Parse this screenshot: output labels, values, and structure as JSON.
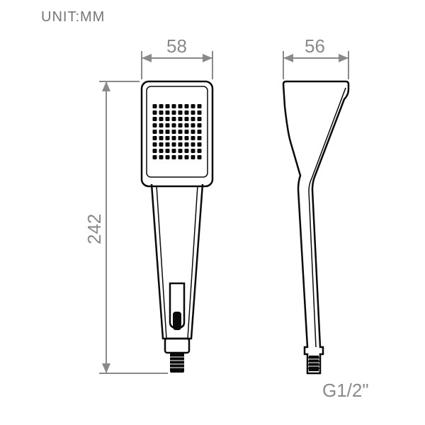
{
  "unit_label": "UNIT:MM",
  "front": {
    "width_label": "58",
    "width_mm": 58,
    "head_height_mm": 108,
    "nozzle_grid": {
      "cols": 8,
      "rows": 9,
      "hole_size": 6,
      "gap": 3
    }
  },
  "height_label": "242",
  "total_height_mm": 242,
  "side": {
    "depth_label": "56",
    "depth_mm": 56,
    "thread_label": "G1/2\""
  },
  "colors": {
    "outline": "#0a0a0a",
    "dim": "#8a8a8a",
    "background": "#ffffff"
  },
  "typography": {
    "unit_fontsize": 20,
    "dim_fontsize": 26
  }
}
